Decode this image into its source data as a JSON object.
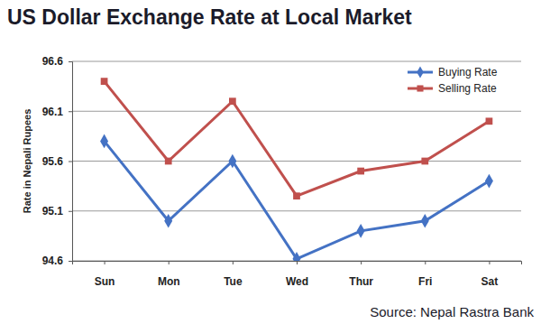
{
  "chart_data": {
    "type": "line",
    "title": "US Dollar Exchange Rate at Local Market",
    "y_label": "Rate in Nepali Rupees",
    "source": "Source: Nepal Rastra Bank",
    "categories": [
      "Sun",
      "Mon",
      "Tue",
      "Wed",
      "Thur",
      "Fri",
      "Sat"
    ],
    "series": [
      {
        "name": "Buying Rate",
        "color": "#4472c4",
        "marker": "diamond",
        "values": [
          95.8,
          95.0,
          95.6,
          94.62,
          94.9,
          95.0,
          95.4
        ]
      },
      {
        "name": "Selling Rate",
        "color": "#c0504d",
        "marker": "square",
        "values": [
          96.4,
          95.6,
          96.2,
          95.25,
          95.5,
          95.6,
          96.0
        ]
      }
    ],
    "ylim": [
      94.6,
      96.6
    ],
    "yticks": [
      94.6,
      95.1,
      95.6,
      96.1,
      96.6
    ],
    "grid": true,
    "legend": "top-right"
  }
}
